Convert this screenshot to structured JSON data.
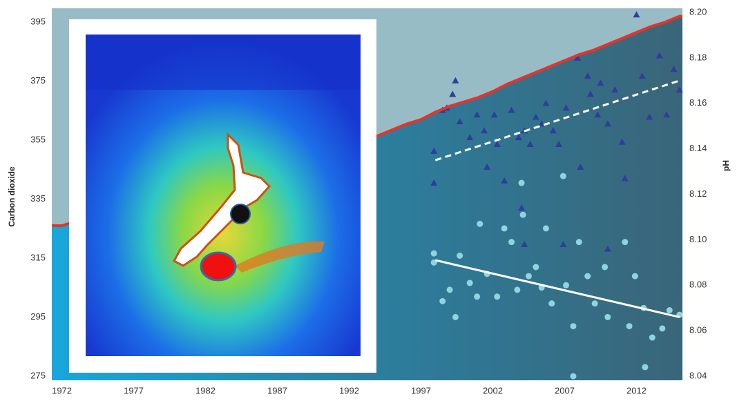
{
  "chart_data": {
    "type": "line",
    "y_label": "Carbon dioxide",
    "y2_label": "pH",
    "xlim": [
      1971.3,
      2015.2
    ],
    "xticks": [
      1972,
      1977,
      1982,
      1987,
      1992,
      1997,
      2002,
      2007,
      2012
    ],
    "ylim": [
      273.6,
      399.7
    ],
    "yticks": [
      275,
      295,
      315,
      335,
      355,
      375,
      395
    ],
    "y2lim": [
      8.0382,
      8.2018
    ],
    "y2ticks": [
      {
        "value": 8.04,
        "label": "8.04"
      },
      8.06,
      8.08,
      {
        "value": 8.1,
        "label": "8.10"
      },
      8.12,
      8.14,
      8.16,
      8.18,
      {
        "value": 8.2,
        "label": "8.20"
      }
    ],
    "series": [
      {
        "type": "line",
        "color": "#e8322a",
        "fill_below": "#1da2d6",
        "fill_above": "#98bcc5",
        "x": [
          1972,
          1973,
          1974,
          1975,
          1976,
          1977,
          1978,
          1979,
          1980,
          1981,
          1982,
          1983,
          1984,
          1985,
          1986,
          1987,
          1988,
          1989,
          1990,
          1991,
          1992,
          1993,
          1994,
          1995,
          1996,
          1997,
          1998,
          1999,
          2000,
          2001,
          2002,
          2003,
          2004,
          2005,
          2006,
          2007,
          2008,
          2009,
          2010,
          2011,
          2012,
          2013,
          2014,
          2015
        ],
        "values": [
          326,
          327.5,
          328.5,
          330,
          331,
          332.5,
          334,
          335.5,
          337.5,
          339,
          340,
          341.5,
          343,
          344.5,
          346,
          347.5,
          350,
          351.5,
          353,
          354,
          355,
          355.5,
          356.5,
          358.5,
          360.5,
          362,
          364.5,
          366.5,
          368,
          369.5,
          371.5,
          374,
          376,
          378,
          380,
          382,
          384,
          385.5,
          387.5,
          389.5,
          391.5,
          393.5,
          395,
          397
        ]
      },
      {
        "type": "scatter",
        "axis": "y2",
        "marker": "triangle",
        "color": "#2f3d9c",
        "x": [
          1997.9,
          1997.9,
          1998.5,
          1998.8,
          1999.4,
          1999.2,
          1999.7,
          2000.4,
          2000.9,
          2001.4,
          2001.6,
          2002.1,
          2002.3,
          2002.8,
          2003.3,
          2003.8,
          2004.2,
          2004.6,
          2005.0,
          2005.4,
          2005.7,
          2006.2,
          2006.6,
          2007.1,
          2007.9,
          2008.1,
          2008.6,
          2008.8,
          2009.3,
          2009.5,
          2010.0,
          2010.5,
          2011.0,
          2011.2,
          2012.0,
          2012.4,
          2012.9,
          2013.6,
          2014.1,
          2014.6,
          2015.0,
          2004.0,
          2004.2,
          2006.9,
          2010.0
        ],
        "values": [
          8.125,
          8.139,
          8.157,
          8.158,
          8.17,
          8.164,
          8.152,
          8.145,
          8.155,
          8.148,
          8.132,
          8.155,
          8.142,
          8.126,
          8.157,
          8.145,
          8.148,
          8.142,
          8.154,
          8.151,
          8.16,
          8.148,
          8.142,
          8.158,
          8.18,
          8.132,
          8.172,
          8.164,
          8.155,
          8.169,
          8.151,
          8.166,
          8.143,
          8.127,
          8.199,
          8.172,
          8.154,
          8.181,
          8.155,
          8.175,
          8.166,
          8.114,
          8.098,
          8.098,
          8.096
        ]
      },
      {
        "type": "scatter",
        "axis": "y2",
        "marker": "circle",
        "color": "#8fd4e0",
        "x": [
          1997.9,
          1997.9,
          1998.5,
          1999.0,
          1999.4,
          1999.7,
          2000.4,
          2000.9,
          2001.1,
          2001.6,
          2002.3,
          2002.8,
          2003.3,
          2003.7,
          2004.0,
          2004.1,
          2004.5,
          2005.0,
          2005.4,
          2005.7,
          2006.1,
          2006.9,
          2007.1,
          2007.6,
          2008.0,
          2008.6,
          2009.1,
          2009.8,
          2010.0,
          2011.2,
          2011.5,
          2011.9,
          2012.5,
          2013.1,
          2013.8,
          2014.3,
          2015.0,
          2007.6,
          2012.6
        ],
        "values": [
          8.094,
          8.09,
          8.073,
          8.078,
          8.066,
          8.093,
          8.081,
          8.075,
          8.107,
          8.085,
          8.075,
          8.105,
          8.099,
          8.078,
          8.125,
          8.111,
          8.084,
          8.088,
          8.079,
          8.105,
          8.072,
          8.128,
          8.08,
          8.062,
          8.099,
          8.084,
          8.072,
          8.088,
          8.066,
          8.099,
          8.062,
          8.084,
          8.07,
          8.057,
          8.061,
          8.069,
          8.067,
          8.04,
          8.044
        ]
      },
      {
        "type": "line",
        "axis": "y2",
        "color": "#ffffff",
        "dash": true,
        "x": [
          1998,
          2015
        ],
        "values": [
          8.135,
          8.17
        ]
      },
      {
        "type": "line",
        "axis": "y2",
        "color": "#ffffff",
        "dash": false,
        "x": [
          1998,
          2015
        ],
        "values": [
          8.091,
          8.066
        ]
      }
    ]
  }
}
